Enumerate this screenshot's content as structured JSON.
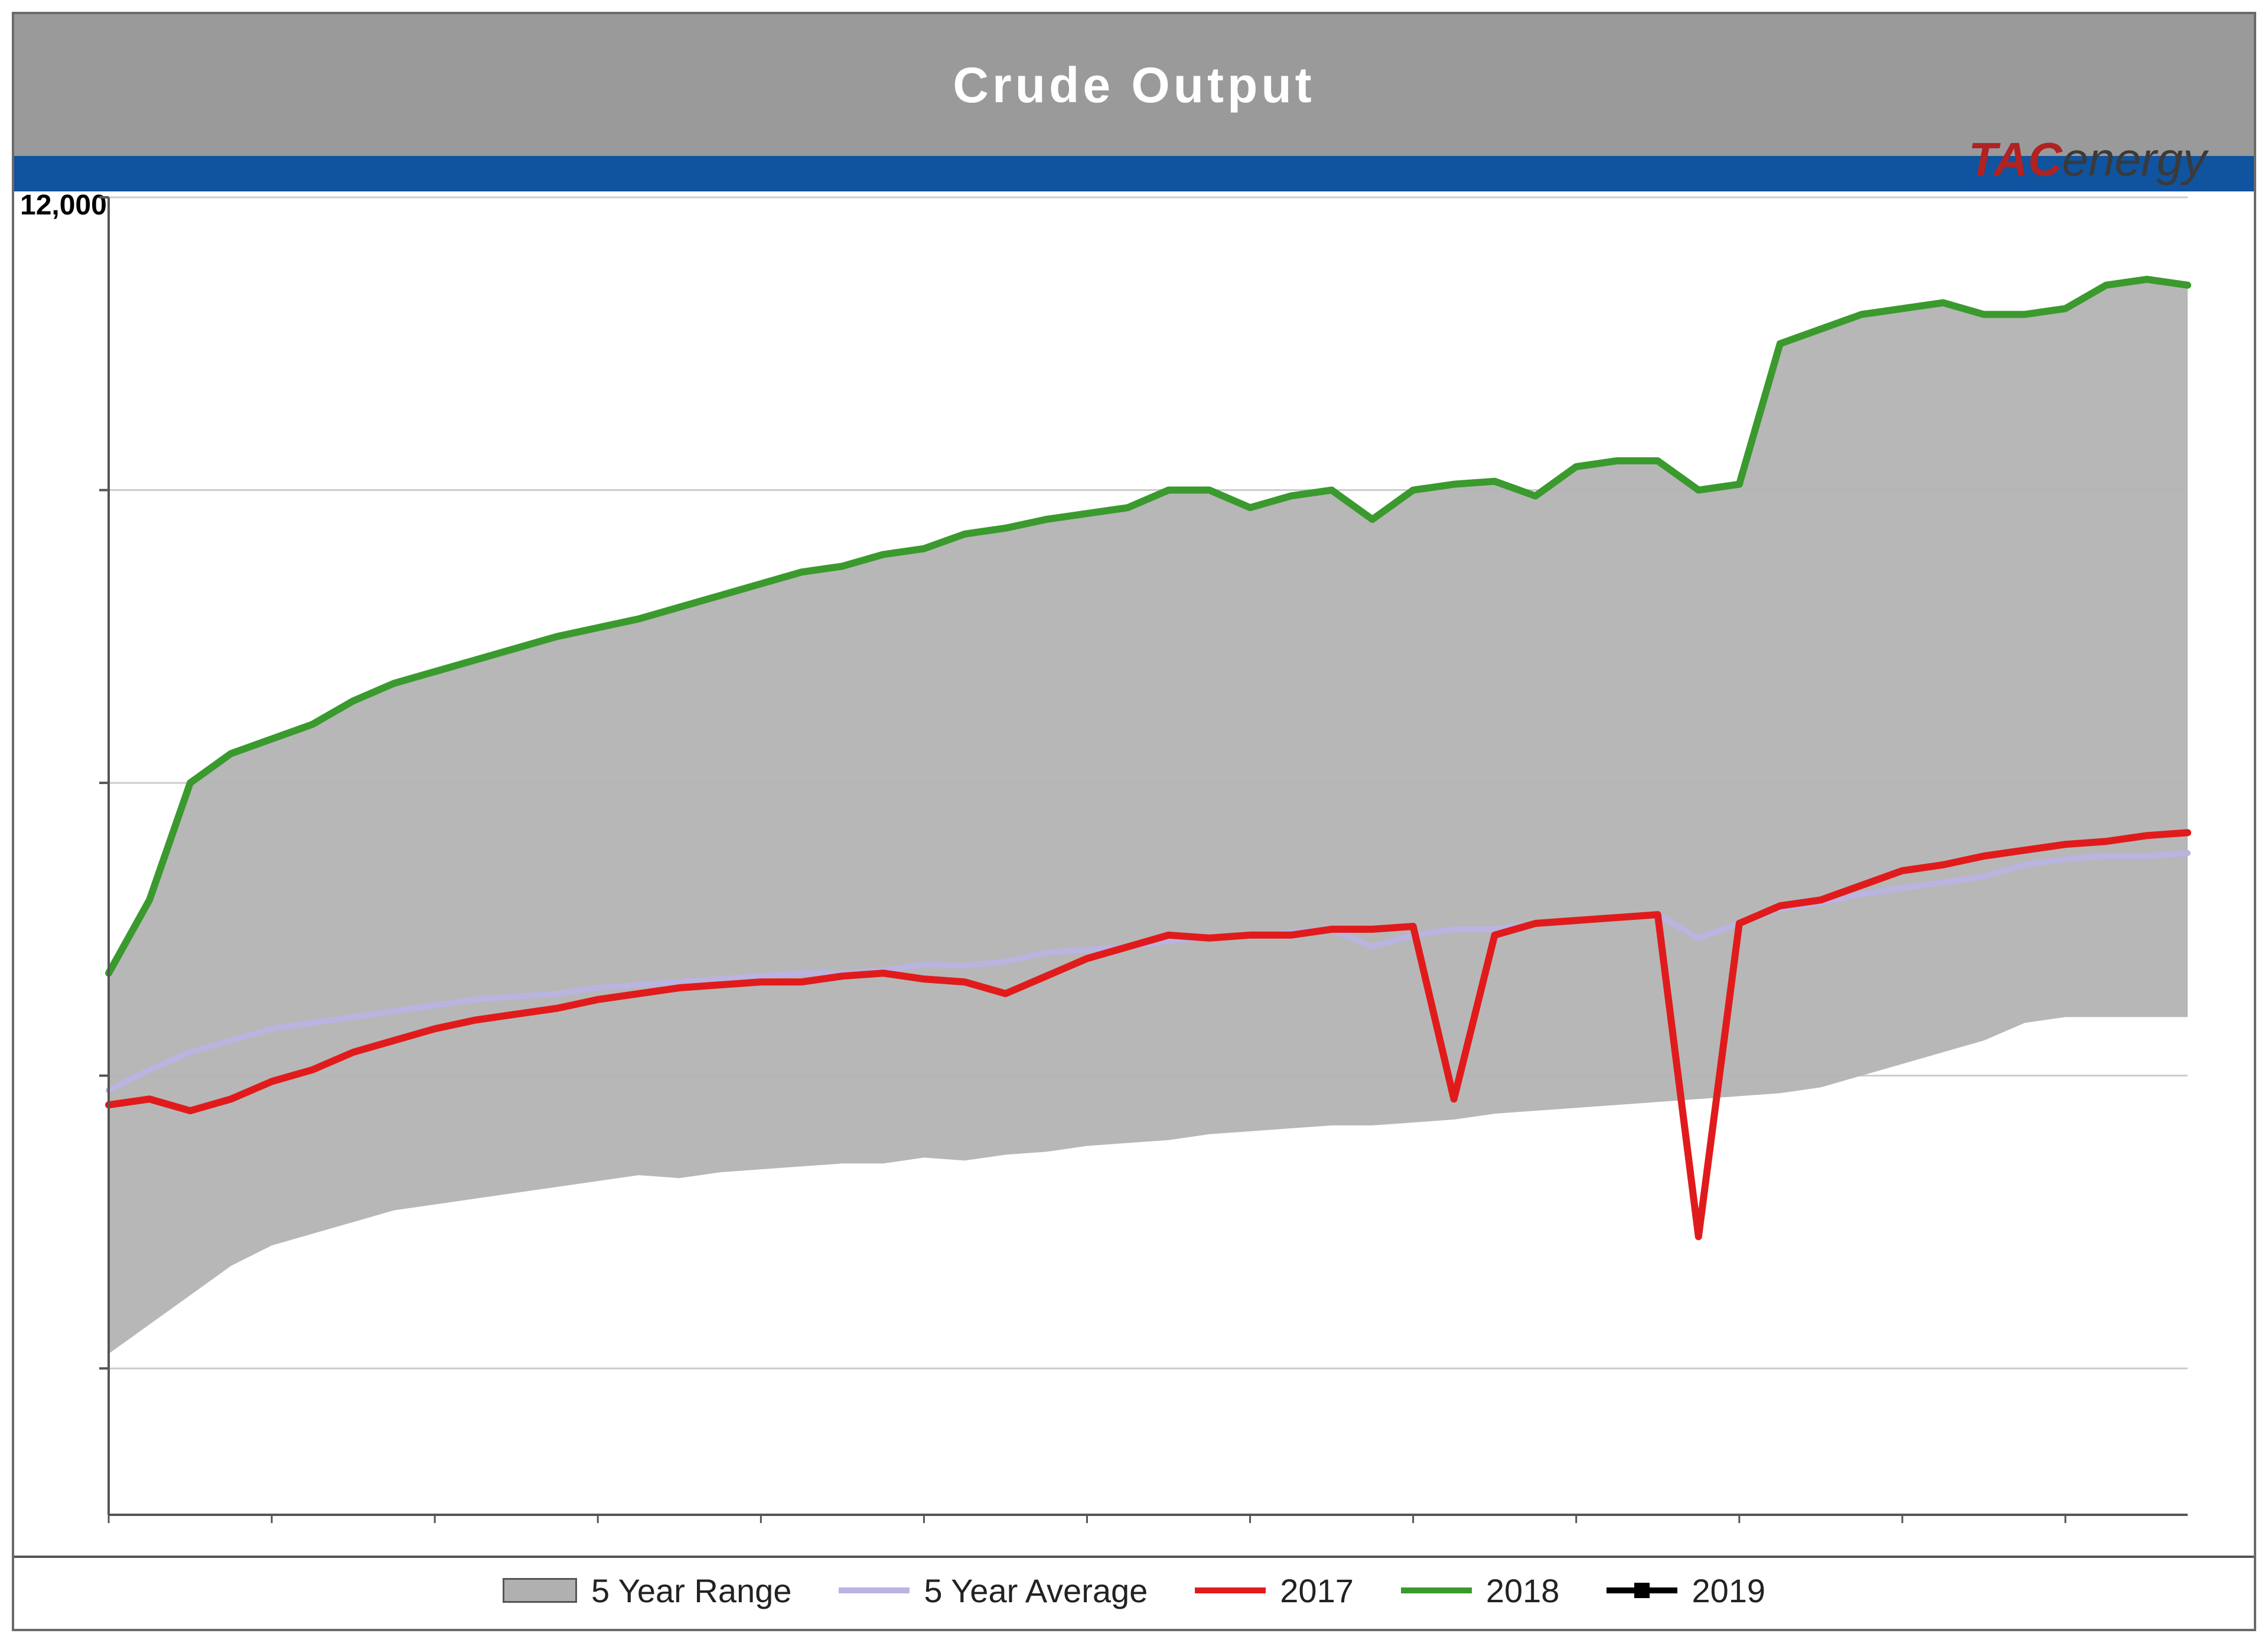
{
  "title": "Crude Output",
  "logo": {
    "part1": "TAC",
    "part2": "energy"
  },
  "y_top_label_partial": "12,000",
  "chart": {
    "type": "line-area",
    "x_count": 52,
    "ylim": [
      7500,
      12000
    ],
    "ytick_step": 1000,
    "yticks": [
      8000,
      9000,
      10000,
      11000,
      12000
    ],
    "background_color": "#ffffff",
    "grid_color": "#cccccc",
    "axis_color": "#555555",
    "range_fill": "#b3b3b3",
    "range_upper": [
      9350,
      9600,
      10000,
      10100,
      10150,
      10200,
      10280,
      10340,
      10380,
      10420,
      10460,
      10500,
      10530,
      10560,
      10600,
      10640,
      10680,
      10720,
      10740,
      10780,
      10800,
      10850,
      10870,
      10900,
      10920,
      10940,
      11000,
      11000,
      10940,
      10980,
      11000,
      10900,
      11000,
      11020,
      11030,
      10980,
      11080,
      11100,
      11100,
      11000,
      11020,
      11500,
      11550,
      11600,
      11620,
      11640,
      11600,
      11600,
      11620,
      11700,
      11720,
      11700
    ],
    "range_lower": [
      8050,
      8150,
      8250,
      8350,
      8420,
      8460,
      8500,
      8540,
      8560,
      8580,
      8600,
      8620,
      8640,
      8660,
      8650,
      8670,
      8680,
      8690,
      8700,
      8700,
      8720,
      8710,
      8730,
      8740,
      8760,
      8770,
      8780,
      8800,
      8810,
      8820,
      8830,
      8830,
      8840,
      8850,
      8870,
      8880,
      8890,
      8900,
      8910,
      8920,
      8930,
      8940,
      8960,
      9000,
      9040,
      9080,
      9120,
      9180,
      9200,
      9200,
      9200,
      9200
    ],
    "series": {
      "five_year_avg": {
        "label": "5 Year Average",
        "color": "#b9b4e0",
        "width": 10,
        "values": [
          8950,
          9020,
          9080,
          9120,
          9160,
          9180,
          9200,
          9220,
          9240,
          9260,
          9270,
          9280,
          9300,
          9310,
          9320,
          9330,
          9340,
          9350,
          9350,
          9360,
          9380,
          9375,
          9390,
          9420,
          9430,
          9440,
          9460,
          9475,
          9475,
          9490,
          9500,
          9440,
          9480,
          9500,
          9500,
          9520,
          9530,
          9540,
          9550,
          9470,
          9520,
          9570,
          9590,
          9620,
          9640,
          9660,
          9680,
          9720,
          9740,
          9750,
          9750,
          9760
        ]
      },
      "y2017": {
        "label": "2017",
        "color": "#e11b1b",
        "width": 12,
        "values": [
          8900,
          8920,
          8880,
          8920,
          8980,
          9020,
          9080,
          9120,
          9160,
          9190,
          9210,
          9230,
          9260,
          9280,
          9300,
          9310,
          9320,
          9320,
          9340,
          9350,
          9330,
          9320,
          9280,
          9340,
          9400,
          9440,
          9480,
          9470,
          9480,
          9480,
          9500,
          9500,
          9510,
          8920,
          9480,
          9520,
          9530,
          9540,
          9550,
          8450,
          9520,
          9580,
          9600,
          9650,
          9700,
          9720,
          9750,
          9770,
          9790,
          9800,
          9820,
          9830
        ]
      },
      "y2018": {
        "label": "2018",
        "color": "#3a9a2d",
        "width": 12,
        "values": [
          9350,
          9600,
          10000,
          10100,
          10150,
          10200,
          10280,
          10340,
          10380,
          10420,
          10460,
          10500,
          10530,
          10560,
          10600,
          10640,
          10680,
          10720,
          10740,
          10780,
          10800,
          10850,
          10870,
          10900,
          10920,
          10940,
          11000,
          11000,
          10940,
          10980,
          11000,
          10900,
          11000,
          11020,
          11030,
          10980,
          11080,
          11100,
          11100,
          11000,
          11020,
          11500,
          11550,
          11600,
          11620,
          11640,
          11600,
          11600,
          11620,
          11700,
          11720,
          11700
        ]
      },
      "y2019": {
        "label": "2019",
        "color": "#000000",
        "width": 10,
        "values": []
      }
    }
  },
  "legend": [
    {
      "key": "range",
      "label": "5 Year Range"
    },
    {
      "key": "avg",
      "label": "5 Year Average"
    },
    {
      "key": "y2017",
      "label": "2017"
    },
    {
      "key": "y2018",
      "label": "2018"
    },
    {
      "key": "y2019",
      "label": "2019"
    }
  ]
}
